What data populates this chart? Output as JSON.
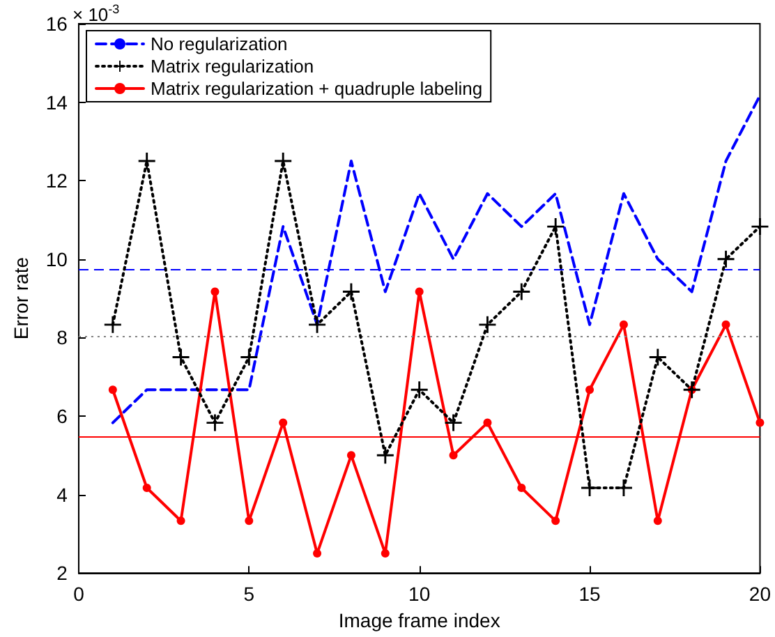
{
  "chart_data": {
    "type": "line",
    "xlabel": "Image frame index",
    "ylabel": "Error rate",
    "annotations": [
      "× 10$^{-3}$"
    ],
    "x": [
      1,
      2,
      3,
      4,
      5,
      6,
      7,
      8,
      9,
      10,
      11,
      12,
      13,
      14,
      15,
      16,
      17,
      18,
      19,
      20
    ],
    "series": [
      {
        "name": "No regularization",
        "color": "#0000ff",
        "line_style": "dashed",
        "marker": "none",
        "values": [
          5.83,
          6.67,
          6.67,
          6.67,
          6.67,
          10.83,
          8.33,
          12.5,
          9.17,
          11.67,
          10.0,
          11.67,
          10.83,
          11.67,
          8.33,
          11.67,
          10.0,
          9.17,
          12.5,
          14.17
        ]
      },
      {
        "name": "Matrix regularization",
        "color": "#000000",
        "line_style": "dotted",
        "marker": "cross",
        "values": [
          8.33,
          12.5,
          7.5,
          5.83,
          7.5,
          12.5,
          8.33,
          9.17,
          5.0,
          6.67,
          5.83,
          8.33,
          9.17,
          10.83,
          4.17,
          4.17,
          7.5,
          6.67,
          10.0,
          10.83
        ]
      },
      {
        "name": "Matrix regularization + quadruple labeling",
        "color": "#ff0000",
        "line_style": "solid",
        "marker": "circle",
        "values": [
          6.67,
          4.17,
          3.33,
          9.17,
          3.33,
          5.83,
          2.5,
          5.0,
          2.5,
          9.17,
          5.0,
          5.83,
          4.17,
          3.33,
          6.67,
          8.33,
          3.33,
          6.67,
          8.33,
          5.83
        ]
      }
    ],
    "ref_lines": [
      {
        "axis": "y",
        "value": 9.75,
        "color": "#0000ff",
        "line_style": "dashed"
      },
      {
        "axis": "y",
        "value": 8.04,
        "color": "#808080",
        "line_style": "dotted"
      },
      {
        "axis": "y",
        "value": 5.46,
        "color": "#ff0000",
        "line_style": "solid"
      }
    ],
    "xlim": [
      0,
      20
    ],
    "xticks": [
      0,
      5,
      10,
      15,
      20
    ],
    "ylim": [
      2,
      16
    ],
    "yticks": [
      2,
      4,
      6,
      8,
      10,
      12,
      14,
      16
    ],
    "grid": false,
    "legend": "top left"
  }
}
